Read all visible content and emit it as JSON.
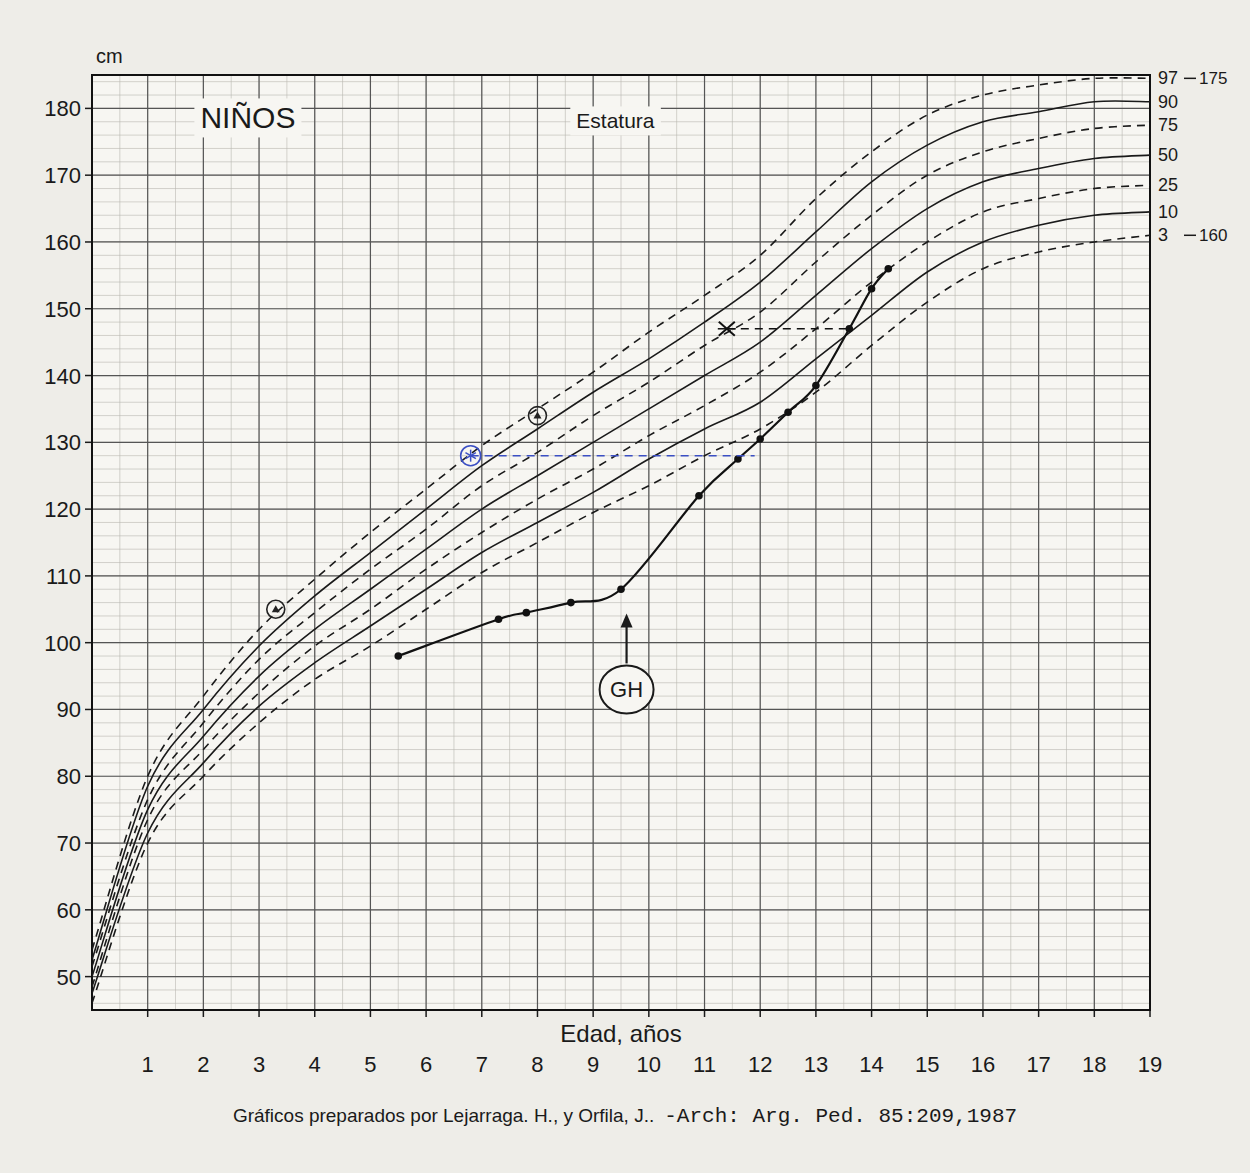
{
  "chart_data": {
    "type": "line",
    "title": "NIÑOS",
    "subtitle": "Estatura",
    "y_label": "cm",
    "x_label": "Edad, años",
    "source": "Gráficos preparados por Lejarraga. H., y Orfila, J..",
    "reference": "-Arch: Arg. Ped. 85:209,1987",
    "xlim": [
      0,
      19
    ],
    "ylim": [
      45,
      185
    ],
    "xticks": [
      1,
      2,
      3,
      4,
      5,
      6,
      7,
      8,
      9,
      10,
      11,
      12,
      13,
      14,
      15,
      16,
      17,
      18,
      19
    ],
    "yticks": [
      50,
      60,
      70,
      80,
      90,
      100,
      110,
      120,
      130,
      140,
      150,
      160,
      170,
      180
    ],
    "grid": true,
    "x": [
      0,
      1,
      2,
      3,
      4,
      5,
      6,
      7,
      8,
      9,
      10,
      11,
      12,
      13,
      14,
      15,
      16,
      17,
      18,
      19
    ],
    "series": [
      {
        "name": "97",
        "type": "line",
        "color": "#1a1a1a",
        "line_style": "dashed",
        "marker": "none",
        "values": [
          54,
          80,
          92,
          102,
          109.5,
          116.5,
          123,
          129.5,
          135,
          140.5,
          146.5,
          152,
          158,
          166.5,
          173.5,
          179,
          182,
          183.5,
          184.5,
          184.5
        ]
      },
      {
        "name": "90",
        "type": "line",
        "color": "#1a1a1a",
        "line_style": "solid",
        "marker": "none",
        "values": [
          52.5,
          78.5,
          90,
          99.5,
          107,
          113.5,
          120,
          126.5,
          132,
          137.5,
          142.5,
          148,
          154,
          161.5,
          169,
          174.5,
          178,
          179.5,
          181,
          181
        ]
      },
      {
        "name": "75",
        "type": "line",
        "color": "#1a1a1a",
        "line_style": "dashed",
        "marker": "none",
        "values": [
          51.5,
          76.5,
          88,
          97.5,
          104.5,
          111,
          117,
          123.5,
          128.5,
          134,
          139,
          144.5,
          149.5,
          157,
          164,
          170,
          173.5,
          175.5,
          177,
          177.5
        ]
      },
      {
        "name": "50",
        "type": "line",
        "color": "#1a1a1a",
        "line_style": "solid",
        "marker": "none",
        "values": [
          50,
          75,
          86,
          95,
          102,
          108,
          114,
          120,
          125,
          130,
          135,
          140,
          145,
          152,
          159,
          165,
          169,
          171,
          172.5,
          173
        ]
      },
      {
        "name": "25",
        "type": "line",
        "color": "#1a1a1a",
        "line_style": "dashed",
        "marker": "none",
        "values": [
          48.5,
          73.5,
          84,
          92.5,
          99.5,
          105,
          111,
          116.5,
          121.5,
          126,
          131,
          135.5,
          140.5,
          147,
          154,
          160,
          164.5,
          166.5,
          168,
          168.5
        ]
      },
      {
        "name": "10",
        "type": "line",
        "color": "#1a1a1a",
        "line_style": "solid",
        "marker": "none",
        "values": [
          47.5,
          71.5,
          82,
          90.5,
          97,
          102.5,
          108,
          113.5,
          118,
          122.5,
          127.5,
          132,
          136,
          142.5,
          149,
          155.5,
          160,
          162.5,
          164,
          164.5
        ]
      },
      {
        "name": "3",
        "type": "line",
        "color": "#1a1a1a",
        "line_style": "dashed",
        "marker": "none",
        "values": [
          46,
          70,
          80,
          88,
          94.5,
          99.5,
          105,
          110.5,
          115,
          119.5,
          123.5,
          128,
          132,
          137.5,
          144.5,
          151,
          156,
          158.5,
          160,
          161
        ]
      },
      {
        "type": "line",
        "color": "#111111",
        "line_style": "solid",
        "marker": "circle",
        "x": [
          5.5,
          7.3,
          7.8,
          8.6,
          9.5,
          10.9,
          11.6,
          12.0,
          12.5,
          13.0,
          13.6,
          14.0,
          14.3
        ],
        "values": [
          98,
          103.5,
          104.5,
          106,
          108,
          122,
          127.5,
          130.5,
          134.5,
          138.5,
          147,
          153,
          156
        ]
      },
      {
        "type": "line",
        "color": "#3b4fc4",
        "line_style": "dashed",
        "marker": "none",
        "x": [
          6.8,
          11.9
        ],
        "values": [
          128,
          128
        ]
      },
      {
        "type": "line",
        "color": "#111111",
        "line_style": "dashed",
        "marker": "none",
        "x": [
          11.4,
          13.6
        ],
        "values": [
          147,
          147
        ]
      },
      {
        "type": "scatter",
        "color": "#3b4fc4",
        "marker": "star-circle",
        "x": [
          6.8
        ],
        "values": [
          128
        ]
      },
      {
        "type": "scatter",
        "color": "#111111",
        "marker": "x",
        "x": [
          11.4
        ],
        "values": [
          147
        ]
      },
      {
        "type": "scatter",
        "color": "#222222",
        "marker": "circle-open",
        "x": [
          3.3,
          8.0
        ],
        "values": [
          105,
          134
        ]
      }
    ],
    "annotations": [
      {
        "text": "GH",
        "x": 9.6,
        "y": 93
      },
      {
        "text": "175",
        "x": 19,
        "y": 184.5
      },
      {
        "text": "160",
        "x": 19,
        "y": 161
      }
    ]
  }
}
